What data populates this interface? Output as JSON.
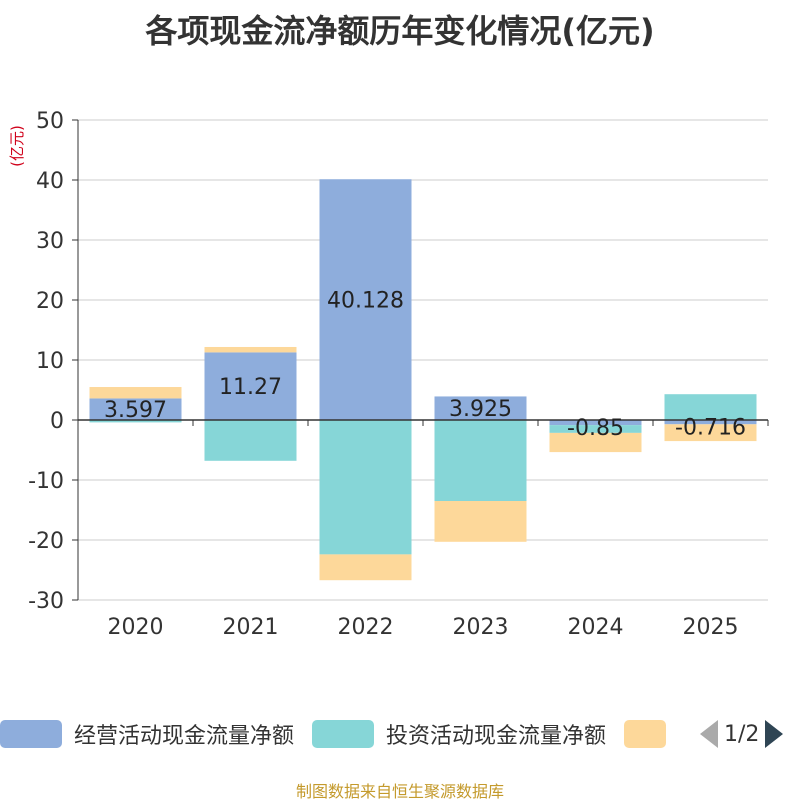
{
  "title": "各项现金流净额历年变化情况(亿元)",
  "source": "制图数据来自恒生聚源数据库",
  "colors": {
    "operating": "#8eaddc",
    "investing": "#86d6d7",
    "financing": "#fdd89a",
    "unit_label": "#d0021b",
    "grid": "#cccccc",
    "axis": "#333333"
  },
  "legend": {
    "items": [
      "经营活动现金流量净额",
      "投资活动现金流量净额",
      ""
    ],
    "page": "1/2"
  },
  "chart_data": {
    "type": "bar",
    "stacked": true,
    "title": "各项现金流净额历年变化情况(亿元)",
    "ylabel": "(亿元)",
    "xlabel": "",
    "ylim": [
      -30,
      50
    ],
    "yticks": [
      -30,
      -20,
      -10,
      0,
      10,
      20,
      30,
      40,
      50
    ],
    "categories": [
      "2020",
      "2021",
      "2022",
      "2023",
      "2024",
      "2025"
    ],
    "series": [
      {
        "name": "经营活动现金流量净额",
        "values": [
          3.597,
          11.27,
          40.128,
          3.925,
          -0.85,
          -0.716
        ],
        "labels": [
          "3.597",
          "11.27",
          "40.128",
          "3.925",
          "-0.85",
          "-0.716"
        ]
      },
      {
        "name": "投资活动现金流量净额",
        "values": [
          -0.4,
          -6.8,
          -22.4,
          -13.5,
          -1.3,
          4.3
        ]
      },
      {
        "name": "",
        "values": [
          1.9,
          0.9,
          -4.3,
          -6.8,
          -3.2,
          -2.8
        ]
      }
    ]
  }
}
